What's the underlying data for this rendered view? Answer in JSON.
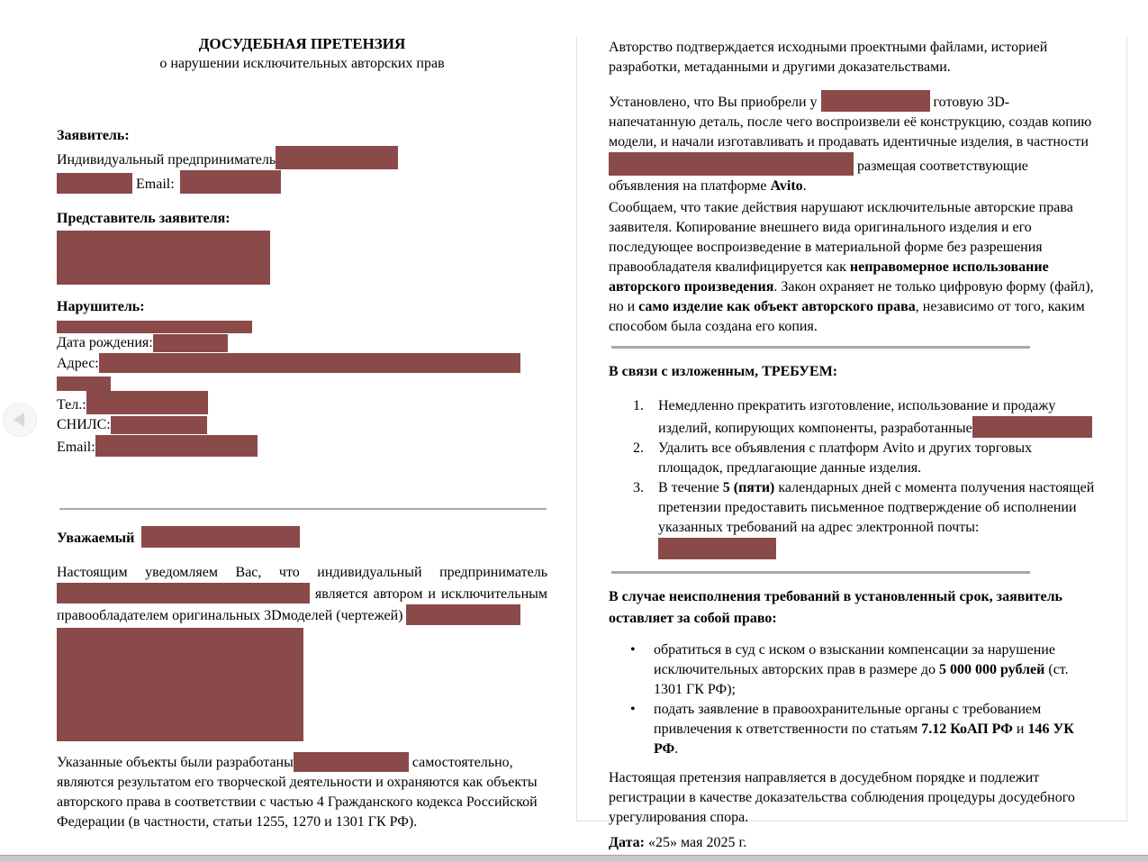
{
  "colors": {
    "redaction": "#8a4a4a",
    "divider": "#a8a8a8",
    "panel-border": "#e2e2e2",
    "scrollbar-track": "#c9c9c9",
    "scrollbar-edge": "#9f9f9f"
  },
  "icons": {
    "prev_button": "left-arrow-icon"
  },
  "left": {
    "title": "ДОСУДЕБНАЯ ПРЕТЕНЗИЯ",
    "subtitle": "о нарушении исключительных авторских прав",
    "claimant": {
      "label": "Заявитель:",
      "line1": "Индивидуальный предприниматель",
      "email_label": "Email:"
    },
    "representative": {
      "label": "Представитель заявителя:"
    },
    "infringer": {
      "label": "Нарушитель:",
      "dob_label": "Дата рождения:",
      "address_label": "Адрес:",
      "phone_label": "Тел.:",
      "snils_label": "СНИЛС:",
      "email_label": "Email:"
    },
    "salutation": "Уважаемый",
    "notice": {
      "part1": "Настоящим уведомляем Вас, что индивидуальный предприниматель ",
      "part2": " является автором и исключительным правообладателем оригинальных 3Dмоделей (чертежей) "
    },
    "developed": {
      "part1": "Указанные объекты были разработаны",
      "part2": " самостоятельно, являются результатом его творческой деятельности и охраняются как объекты авторского права в соответствии с частью 4 Гражданского кодекса Российской Федерации (в частности, статьи 1255, 1270 и 1301 ГК РФ)."
    }
  },
  "right": {
    "p_authorship": "Авторство подтверждается исходными проектными файлами, историей разработки, метаданными и другими доказательствами.",
    "p_established": {
      "part1": "Установлено, что Вы приобрели у ",
      "part2": " готовую 3D-напечатанную деталь, после чего воспроизвели её конструкцию, создав копию модели, и начали изготавливать и продавать идентичные изделия, в частности ",
      "part3": " размещая соответствующие объявления на платформе ",
      "platform": "Avito",
      "part4": "."
    },
    "p_inform": {
      "part1": "Сообщаем, что такие действия нарушают исключительные авторские права заявителя. Копирование внешнего вида оригинального изделия и его последующее воспроизведение в материальной форме без разрешения правообладателя квалифицируется как ",
      "bold1": "неправомерное использование авторского произведения",
      "part2": ". Закон охраняет не только цифровую форму (файл), но и ",
      "bold2": "само изделие как объект авторского права",
      "part3": ", независимо от того, каким способом была создана его копия."
    },
    "demands": {
      "heading": "В связи с изложенным, ТРЕБУЕМ:",
      "items": [
        {
          "num": "1.",
          "part1": "Немедленно прекратить изготовление, использование и продажу изделий, копирующих компоненты, разработанные"
        },
        {
          "num": "2.",
          "part1": "Удалить все объявления с платформ Avito и других торговых площадок, предлагающие данные изделия."
        },
        {
          "num": "3.",
          "part1": "В течение ",
          "bold": "5 (пяти)",
          "part2": " календарных дней с момента получения настоящей претензии предоставить письменное подтверждение об исполнении указанных требований на адрес электронной почты:"
        }
      ]
    },
    "consequences": {
      "heading": "В случае неисполнения требований в установленный срок, заявитель оставляет за собой право:",
      "bullets": [
        {
          "marker": "•",
          "part1": "обратиться в суд с иском о взыскании компенсации за нарушение исключительных авторских прав в размере до ",
          "bold1": "5 000 000 рублей",
          "part2": " (ст. 1301 ГК РФ);"
        },
        {
          "marker": "•",
          "part1": "подать заявление в правоохранительные органы с требованием привлечения к ответственности по статьям ",
          "bold1": "7.12 КоАП РФ",
          "part2": " и ",
          "bold2": "146 УК РФ",
          "part3": "."
        }
      ]
    },
    "p_final": "Настоящая претензия направляется в досудебном порядке и подлежит регистрации в качестве доказательства соблюдения процедуры досудебного урегулирования спора.",
    "date_label": "Дата:",
    "date_value": "«25» мая  2025 г."
  }
}
